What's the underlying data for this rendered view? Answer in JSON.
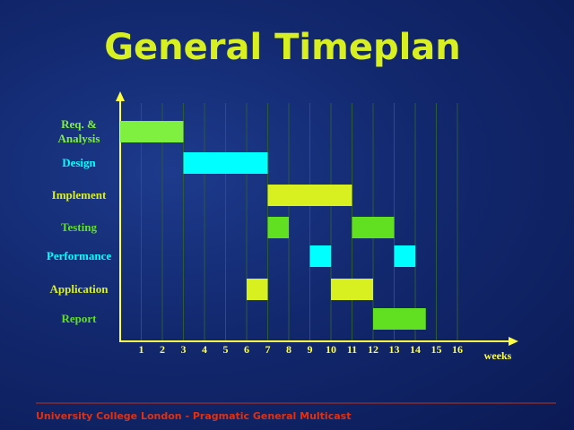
{
  "chart_data": {
    "type": "gantt",
    "title": "General Timeplan",
    "x_label": "weeks",
    "xlim": [
      0,
      18.7
    ],
    "xticks": [
      1,
      2,
      3,
      4,
      5,
      6,
      7,
      8,
      9,
      10,
      11,
      12,
      13,
      14,
      15,
      16
    ],
    "grid": true,
    "tasks": [
      {
        "name": "Req. &\nAnalysis",
        "color": "#80f040",
        "segments": [
          [
            0,
            3
          ]
        ]
      },
      {
        "name": "Design",
        "color": "#00ffff",
        "segments": [
          [
            3,
            7
          ]
        ]
      },
      {
        "name": "Implement",
        "color": "#d8f020",
        "segments": [
          [
            7,
            11
          ]
        ]
      },
      {
        "name": "Testing",
        "color": "#60e020",
        "segments": [
          [
            7,
            8
          ],
          [
            11,
            13
          ]
        ]
      },
      {
        "name": "Performance",
        "color": "#00ffff",
        "segments": [
          [
            9,
            10
          ],
          [
            13,
            14
          ]
        ]
      },
      {
        "name": "Application",
        "color": "#d8f020",
        "segments": [
          [
            6,
            7
          ],
          [
            10,
            12
          ]
        ]
      },
      {
        "name": "Report",
        "color": "#60e020",
        "segments": [
          [
            12,
            14.5
          ]
        ]
      }
    ]
  },
  "footer": "University College London - Pragmatic General Multicast"
}
